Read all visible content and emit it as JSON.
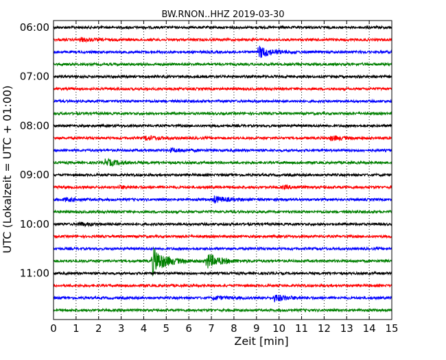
{
  "chart_data": {
    "type": "line",
    "title": "BW.RNON..HHZ 2019-03-30",
    "xlabel": "Zeit  [min]",
    "ylabel": "UTC (Lokalzeit = UTC + 01:00)",
    "xlim": [
      0,
      15
    ],
    "x_ticks": [
      0,
      1,
      2,
      3,
      4,
      5,
      6,
      7,
      8,
      9,
      10,
      11,
      12,
      13,
      14,
      15
    ],
    "y_tick_labels": [
      "06:00",
      "07:00",
      "08:00",
      "09:00",
      "10:00",
      "11:00"
    ],
    "grid": "vertical-dotted",
    "trace_colors": [
      "#000000",
      "#ff0000",
      "#0000ff",
      "#008000"
    ],
    "traces": [
      {
        "start": "06:00",
        "amplitude": 1.0,
        "events": []
      },
      {
        "start": "06:15",
        "amplitude": 1.0,
        "events": [
          {
            "x": 1.2,
            "amp": 0.4
          }
        ]
      },
      {
        "start": "06:30",
        "amplitude": 1.0,
        "events": [
          {
            "x": 9.1,
            "amp": 1.4
          }
        ]
      },
      {
        "start": "06:45",
        "amplitude": 1.0,
        "events": []
      },
      {
        "start": "07:00",
        "amplitude": 1.0,
        "events": []
      },
      {
        "start": "07:15",
        "amplitude": 1.0,
        "events": []
      },
      {
        "start": "07:30",
        "amplitude": 1.0,
        "events": []
      },
      {
        "start": "07:45",
        "amplitude": 1.0,
        "events": []
      },
      {
        "start": "08:00",
        "amplitude": 1.0,
        "events": []
      },
      {
        "start": "08:15",
        "amplitude": 1.0,
        "events": [
          {
            "x": 4.1,
            "amp": 0.5
          },
          {
            "x": 12.3,
            "amp": 0.5
          }
        ]
      },
      {
        "start": "08:30",
        "amplitude": 1.0,
        "events": [
          {
            "x": 5.2,
            "amp": 0.4
          }
        ]
      },
      {
        "start": "08:45",
        "amplitude": 1.0,
        "events": [
          {
            "x": 2.3,
            "amp": 0.8
          }
        ]
      },
      {
        "start": "09:00",
        "amplitude": 1.0,
        "events": []
      },
      {
        "start": "09:15",
        "amplitude": 1.0,
        "events": [
          {
            "x": 2.9,
            "amp": 0.3
          },
          {
            "x": 10.2,
            "amp": 0.3
          }
        ]
      },
      {
        "start": "09:30",
        "amplitude": 1.0,
        "events": [
          {
            "x": 0.5,
            "amp": 0.4
          },
          {
            "x": 7.1,
            "amp": 0.8
          }
        ]
      },
      {
        "start": "09:45",
        "amplitude": 1.0,
        "events": []
      },
      {
        "start": "10:00",
        "amplitude": 1.0,
        "events": [
          {
            "x": 1.1,
            "amp": 0.4
          }
        ]
      },
      {
        "start": "10:15",
        "amplitude": 1.0,
        "events": []
      },
      {
        "start": "10:30",
        "amplitude": 1.0,
        "events": []
      },
      {
        "start": "10:45",
        "amplitude": 1.0,
        "events": [
          {
            "x": 4.4,
            "amp": 3.2
          },
          {
            "x": 6.8,
            "amp": 1.8
          }
        ]
      },
      {
        "start": "11:00",
        "amplitude": 1.0,
        "events": []
      },
      {
        "start": "11:15",
        "amplitude": 1.0,
        "events": []
      },
      {
        "start": "11:30",
        "amplitude": 1.0,
        "events": [
          {
            "x": 7.1,
            "amp": 0.4
          },
          {
            "x": 9.8,
            "amp": 0.8
          }
        ]
      },
      {
        "start": "11:45",
        "amplitude": 1.0,
        "events": []
      }
    ]
  }
}
